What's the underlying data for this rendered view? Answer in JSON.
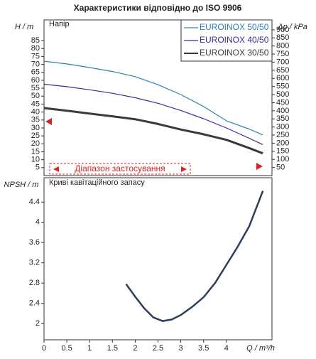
{
  "chart_data": [
    {
      "type": "line",
      "title": "Характеристики відповідно до ISO 9906",
      "ylabel": "H / m",
      "y2label": "Δp / kPa",
      "panel_label": "Напір",
      "range_label": "Діапазон застосування",
      "xlim": [
        0,
        5
      ],
      "ylim": [
        0,
        98
      ],
      "yticks": [
        5,
        10,
        15,
        20,
        25,
        30,
        35,
        40,
        45,
        50,
        55,
        60,
        65,
        70,
        75,
        80,
        85
      ],
      "y2lim": [
        0,
        961
      ],
      "y2ticks": [
        50,
        100,
        150,
        200,
        250,
        300,
        350,
        400,
        450,
        500,
        550,
        600,
        650,
        700,
        750,
        800,
        850,
        900
      ],
      "legend": "top-right",
      "x": [
        0,
        0.5,
        1,
        1.5,
        2,
        2.5,
        3,
        3.5,
        4,
        4.5,
        4.8
      ],
      "series": [
        {
          "name": "EUROINOX 50/50",
          "color": "#2f7fb3",
          "width": 1.2,
          "values": [
            72,
            70.3,
            68,
            65.5,
            62.3,
            57.2,
            51,
            43.5,
            34.5,
            29.3,
            25.6
          ]
        },
        {
          "name": "EUROINOX 40/50",
          "color": "#3b2a9c",
          "width": 1.2,
          "values": [
            57.5,
            56,
            54,
            51.8,
            49,
            45.5,
            41,
            35.8,
            30,
            23.5,
            19.5
          ]
        },
        {
          "name": "EUROINOX 30/50",
          "color": "#3a3a3a",
          "width": 3,
          "values": [
            42.5,
            40.8,
            39,
            37.3,
            35.5,
            32.5,
            29,
            26,
            22.5,
            17.3,
            14
          ]
        }
      ]
    },
    {
      "type": "line",
      "ylabel": "NPSH / m",
      "xlabel": "Q / m³/h",
      "panel_label": "Криві кавітаційного запасу",
      "xlim": [
        0,
        5
      ],
      "xticks": [
        0,
        0.5,
        1,
        1.5,
        2,
        2.5,
        3,
        3.5,
        4
      ],
      "ylim": [
        1.68,
        4.88
      ],
      "yticks": [
        2,
        2.4,
        2.8,
        3.2,
        3.6,
        4,
        4.4
      ],
      "x": [
        1.8,
        2,
        2.2,
        2.4,
        2.6,
        2.8,
        3,
        3.25,
        3.5,
        3.75,
        4,
        4.25,
        4.5,
        4.8
      ],
      "series": [
        {
          "color": "#2d3f5a",
          "width": 2.5,
          "values": [
            2.78,
            2.53,
            2.3,
            2.12,
            2.05,
            2.08,
            2.17,
            2.33,
            2.52,
            2.8,
            3.16,
            3.52,
            3.92,
            4.62
          ]
        }
      ]
    }
  ]
}
